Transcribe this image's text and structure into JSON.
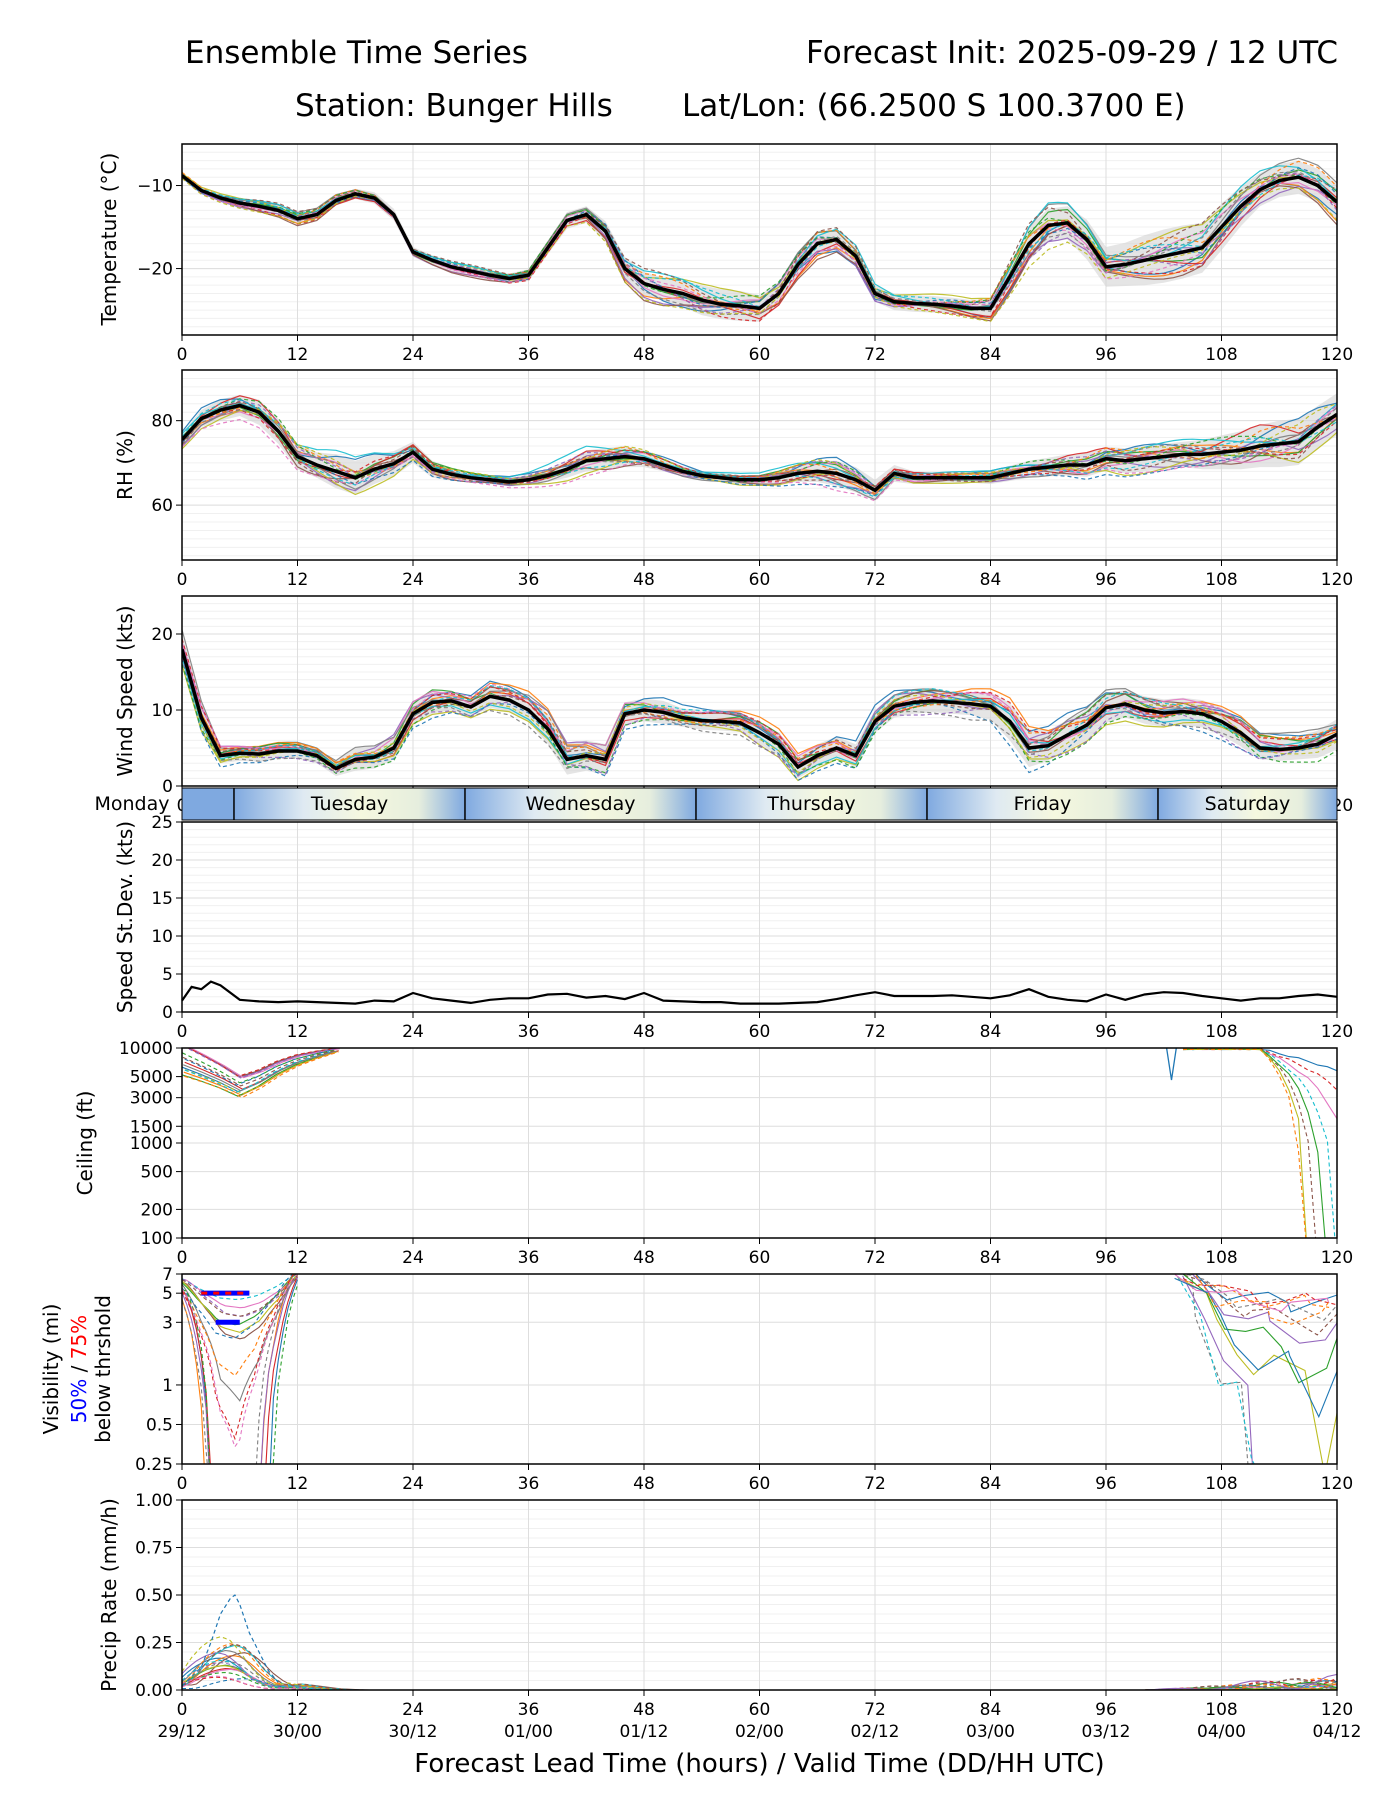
{
  "header": {
    "title_left": "Ensemble Time Series",
    "title_right": "Forecast Init: 2025-09-29 / 12 UTC",
    "station": "Station: Bunger Hills",
    "latlon": "Lat/Lon: (66.2500 S 100.3700 E)"
  },
  "x_axis": {
    "ticks": [
      0,
      12,
      24,
      36,
      48,
      60,
      72,
      84,
      96,
      108,
      120
    ],
    "valid_times": [
      "29/12",
      "30/00",
      "30/12",
      "01/00",
      "01/12",
      "02/00",
      "02/12",
      "03/00",
      "03/12",
      "04/00",
      "04/12"
    ],
    "label": "Forecast Lead Time (hours) / Valid Time (DD/HH UTC)"
  },
  "day_strip": {
    "days": [
      {
        "name": "Monday",
        "start": 0,
        "end": 5.4
      },
      {
        "name": "Tuesday",
        "start": 5.4,
        "end": 29.4
      },
      {
        "name": "Wednesday",
        "start": 29.4,
        "end": 53.4
      },
      {
        "name": "Thursday",
        "start": 53.4,
        "end": 77.4
      },
      {
        "name": "Friday",
        "start": 77.4,
        "end": 101.4
      },
      {
        "name": "Saturday",
        "start": 101.4,
        "end": 120
      }
    ]
  },
  "colors": {
    "mean": "#000000",
    "spread": "#d3d3d3",
    "vis50": "#0000ff",
    "vis75": "#ff0000",
    "members": [
      "#1f77b4",
      "#ff7f0e",
      "#2ca02c",
      "#d62728",
      "#9467bd",
      "#8c564b",
      "#e377c2",
      "#7f7f7f",
      "#bcbd22",
      "#17becf"
    ]
  },
  "chart_data": [
    {
      "type": "line",
      "id": "temperature",
      "ylabel": "Temperature (°C)",
      "ylim": [
        -28,
        -5
      ],
      "yticks": [
        -20,
        -10
      ],
      "ytick_labels": [
        "−20",
        "−10"
      ],
      "x": [
        0,
        2,
        4,
        6,
        8,
        10,
        12,
        14,
        16,
        18,
        20,
        22,
        24,
        26,
        28,
        30,
        32,
        34,
        36,
        38,
        40,
        42,
        44,
        46,
        48,
        50,
        52,
        54,
        56,
        58,
        60,
        62,
        64,
        66,
        68,
        70,
        72,
        74,
        76,
        78,
        80,
        82,
        84,
        86,
        88,
        90,
        92,
        94,
        96,
        98,
        100,
        102,
        104,
        106,
        108,
        110,
        112,
        114,
        116,
        118,
        120
      ],
      "series": [
        {
          "name": "ensemble mean",
          "values": [
            -8.8,
            -10.6,
            -11.5,
            -12.1,
            -12.5,
            -13,
            -14,
            -13.5,
            -11.8,
            -11,
            -11.5,
            -13.5,
            -18,
            -19,
            -19.8,
            -20.3,
            -20.8,
            -21.2,
            -20.8,
            -17.5,
            -14.2,
            -13.5,
            -15.5,
            -20,
            -21.8,
            -22.5,
            -23,
            -23.8,
            -24.3,
            -24.5,
            -24.8,
            -23,
            -19.5,
            -17,
            -16.5,
            -18.5,
            -23,
            -24,
            -24.2,
            -24.3,
            -24.5,
            -24.8,
            -24.8,
            -21,
            -17,
            -14.8,
            -14.5,
            -16.5,
            -19.8,
            -19.5,
            -19,
            -18.5,
            -18,
            -17.5,
            -15,
            -12.5,
            -10.5,
            -9.4,
            -9,
            -10,
            -12
          ]
        }
      ],
      "spread_width": [
        0.3,
        0.4,
        0.5,
        0.5,
        0.5,
        0.6,
        0.6,
        0.6,
        0.6,
        0.6,
        0.7,
        0.7,
        0.6,
        0.6,
        0.6,
        0.6,
        0.6,
        0.6,
        0.7,
        0.8,
        1,
        1,
        1.2,
        1.4,
        1.4,
        1.4,
        1.6,
        1.8,
        1.8,
        1.8,
        1.6,
        1.4,
        1.4,
        1.2,
        1.2,
        1.2,
        1,
        1,
        1,
        1,
        1,
        1,
        1.2,
        1.6,
        2,
        2,
        2,
        2.4,
        2.4,
        2.6,
        3,
        3.2,
        3.2,
        3,
        2.8,
        2.4,
        2,
        2,
        2,
        2,
        2.2
      ],
      "member_spread": [
        0.6,
        0.7,
        0.8,
        0.9,
        1,
        1,
        1,
        1,
        1,
        0.9,
        0.9,
        1,
        0.9,
        0.9,
        0.9,
        0.9,
        0.9,
        0.9,
        1,
        1.1,
        1.2,
        1.4,
        1.8,
        2.2,
        2.6,
        2.8,
        2.8,
        2.8,
        2.8,
        2.8,
        2.8,
        2.6,
        2.6,
        2.5,
        2.2,
        2,
        1.8,
        1.6,
        1.6,
        1.6,
        1.6,
        1.6,
        2,
        2.8,
        3.6,
        4,
        3.6,
        3.2,
        3.2,
        3.2,
        3.4,
        3.6,
        3.8,
        3.8,
        3.6,
        3.4,
        3.2,
        3,
        3,
        3.2,
        3.4
      ]
    },
    {
      "type": "line",
      "id": "rh",
      "ylabel": "RH (%)",
      "ylim": [
        47,
        92
      ],
      "yticks": [
        60,
        80
      ],
      "ytick_labels": [
        "60",
        "80"
      ],
      "x": [
        0,
        2,
        4,
        6,
        8,
        10,
        12,
        14,
        16,
        18,
        20,
        22,
        24,
        26,
        28,
        30,
        32,
        34,
        36,
        38,
        40,
        42,
        44,
        46,
        48,
        50,
        52,
        54,
        56,
        58,
        60,
        62,
        64,
        66,
        68,
        70,
        72,
        74,
        76,
        78,
        80,
        82,
        84,
        86,
        88,
        90,
        92,
        94,
        96,
        98,
        100,
        102,
        104,
        106,
        108,
        110,
        112,
        114,
        116,
        118,
        120
      ],
      "series": [
        {
          "name": "ensemble mean",
          "values": [
            75.5,
            80.5,
            82.5,
            83.6,
            82,
            77.5,
            71.5,
            69.5,
            68,
            66.5,
            68.5,
            69.8,
            72.5,
            68.5,
            67.3,
            66.5,
            66,
            65.5,
            66,
            67,
            68.5,
            70.5,
            71,
            71.5,
            71,
            69.5,
            68,
            67,
            66.5,
            66,
            66,
            66.5,
            67.5,
            68,
            67.5,
            66,
            63.5,
            67.5,
            66.5,
            66.5,
            66.5,
            66.5,
            66.5,
            67.5,
            68.5,
            69,
            69.5,
            69.5,
            71,
            70.5,
            71,
            71.5,
            72,
            72,
            72.5,
            73,
            74,
            74.5,
            75,
            78.5,
            81.5
          ]
        }
      ],
      "spread_width": [
        1.5,
        2,
        2.5,
        2.5,
        3,
        3,
        3,
        3,
        4,
        4,
        3.5,
        3,
        2.5,
        2,
        1.5,
        1.2,
        1,
        1,
        1.2,
        1.5,
        2,
        2.5,
        2.5,
        2.5,
        2,
        1.5,
        1.2,
        1,
        1,
        1,
        1,
        1.5,
        2,
        2.5,
        3,
        3,
        2.5,
        2,
        1.5,
        1.2,
        1.2,
        1.2,
        1.5,
        1.8,
        2,
        2.2,
        2.5,
        2.8,
        2.8,
        3,
        3,
        3,
        3,
        3.5,
        4,
        4.5,
        5,
        5.5,
        5.5,
        5,
        5
      ],
      "member_spread": [
        3,
        3.5,
        4,
        4,
        4.5,
        5,
        5,
        5,
        6,
        6,
        5.5,
        4.5,
        3.5,
        3,
        2.5,
        2,
        1.8,
        1.8,
        2.2,
        3,
        4,
        5,
        5,
        4.5,
        3.5,
        3,
        2.5,
        2,
        2,
        2,
        2,
        3,
        4,
        5,
        6,
        5,
        4,
        3,
        2.5,
        2,
        2,
        2,
        2.5,
        3,
        3.5,
        4,
        4.5,
        5,
        5,
        5,
        5,
        5,
        5,
        5.5,
        6,
        7,
        8,
        8,
        8,
        7,
        6
      ]
    },
    {
      "type": "line",
      "id": "wind",
      "ylabel": "Wind Speed (kts)",
      "ylim": [
        0,
        25
      ],
      "yticks": [
        0,
        10,
        20
      ],
      "ytick_labels": [
        "0",
        "10",
        "20"
      ],
      "x": [
        0,
        2,
        4,
        6,
        8,
        10,
        12,
        14,
        16,
        18,
        20,
        22,
        24,
        26,
        28,
        30,
        32,
        34,
        36,
        38,
        40,
        42,
        44,
        46,
        48,
        50,
        52,
        54,
        56,
        58,
        60,
        62,
        64,
        66,
        68,
        70,
        72,
        74,
        76,
        78,
        80,
        82,
        84,
        86,
        88,
        90,
        92,
        94,
        96,
        98,
        100,
        102,
        104,
        106,
        108,
        110,
        112,
        114,
        116,
        118,
        120
      ],
      "series": [
        {
          "name": "ensemble mean",
          "values": [
            18,
            9,
            4,
            4.3,
            4.2,
            4.6,
            4.6,
            4,
            2.3,
            3.5,
            3.8,
            5,
            9.5,
            11,
            11.2,
            10.4,
            11.8,
            11.3,
            10,
            7.5,
            3.5,
            4,
            3.5,
            9.5,
            10,
            9.7,
            9,
            8.6,
            8.5,
            8.3,
            7,
            5.5,
            2.5,
            4,
            5,
            4,
            8.5,
            10.5,
            11,
            11.2,
            11,
            10.8,
            10.5,
            8.5,
            5,
            5.3,
            6.7,
            8,
            10.3,
            10.8,
            10,
            9.6,
            9.8,
            9.5,
            8.5,
            7,
            5,
            4.8,
            5,
            5.5,
            6.8
          ]
        }
      ],
      "spread_width": [
        2,
        2,
        1,
        1,
        1,
        1,
        1,
        1,
        1,
        1.5,
        1.5,
        1.5,
        1.5,
        1.5,
        1.2,
        1.2,
        1.5,
        1.5,
        1.5,
        2,
        2,
        2,
        2,
        1.5,
        1.5,
        1.5,
        1.2,
        1.2,
        1.2,
        1.2,
        1.5,
        1.5,
        1.5,
        1.5,
        1.5,
        1.5,
        1.5,
        1.5,
        1.5,
        1.5,
        1.5,
        1.5,
        1.8,
        2.5,
        2.5,
        2,
        2,
        2,
        2,
        1.8,
        1.8,
        1.8,
        1.8,
        1.8,
        1.8,
        1.8,
        1.5,
        1.5,
        1.5,
        1.8,
        2
      ],
      "member_spread": [
        3,
        3,
        2,
        1.5,
        1.5,
        1.5,
        1.5,
        1.5,
        1.5,
        2,
        2,
        2.5,
        2.5,
        2.5,
        2,
        2,
        2.5,
        2.5,
        3,
        3.5,
        3,
        3,
        3,
        2.5,
        2.5,
        2.5,
        2,
        2,
        2,
        2,
        2.5,
        2.5,
        2.5,
        2.5,
        2.5,
        2.5,
        2.5,
        2.5,
        2.5,
        2.5,
        2.5,
        3,
        3,
        4,
        4,
        3.5,
        3.5,
        3,
        3,
        3,
        3,
        3,
        3,
        3,
        3,
        3,
        2.5,
        2.5,
        2.5,
        3,
        3
      ]
    },
    {
      "type": "line",
      "id": "wind_std",
      "ylabel": "Speed St.Dev. (kts)",
      "ylim": [
        0,
        25
      ],
      "yticks": [
        0,
        5,
        10,
        15,
        20,
        25
      ],
      "ytick_labels": [
        "0",
        "5",
        "10",
        "15",
        "20",
        "25"
      ],
      "x": [
        0,
        1,
        2,
        3,
        4,
        6,
        8,
        10,
        12,
        14,
        16,
        18,
        20,
        22,
        24,
        26,
        28,
        30,
        32,
        34,
        36,
        38,
        40,
        42,
        44,
        46,
        48,
        50,
        52,
        54,
        56,
        58,
        60,
        62,
        64,
        66,
        68,
        70,
        72,
        74,
        76,
        78,
        80,
        82,
        84,
        86,
        88,
        90,
        92,
        94,
        96,
        98,
        100,
        102,
        104,
        106,
        108,
        110,
        112,
        114,
        116,
        118,
        120
      ],
      "series": [
        {
          "name": "speed std dev",
          "values": [
            1.5,
            3.3,
            3,
            4,
            3.5,
            1.6,
            1.4,
            1.3,
            1.4,
            1.3,
            1.2,
            1.1,
            1.5,
            1.4,
            2.5,
            1.8,
            1.5,
            1.2,
            1.6,
            1.8,
            1.8,
            2.3,
            2.4,
            1.9,
            2.1,
            1.7,
            2.5,
            1.5,
            1.4,
            1.3,
            1.3,
            1.1,
            1.1,
            1.1,
            1.2,
            1.3,
            1.7,
            2.2,
            2.6,
            2.1,
            2.1,
            2.1,
            2.2,
            2.0,
            1.8,
            2.2,
            3,
            2.0,
            1.6,
            1.4,
            2.3,
            1.6,
            2.3,
            2.6,
            2.5,
            2.1,
            1.8,
            1.5,
            1.8,
            1.8,
            2.1,
            2.3,
            2.0
          ]
        }
      ]
    },
    {
      "type": "line",
      "id": "ceiling",
      "scale": "log",
      "ylabel": "Ceiling (ft)",
      "ylim": [
        100,
        10000
      ],
      "yticks": [
        100,
        200,
        500,
        1000,
        1500,
        3000,
        5000,
        10000
      ],
      "ytick_labels": [
        "100",
        "200",
        "500",
        "1000",
        "1500",
        "3000",
        "5000",
        "10000"
      ],
      "x": [
        0,
        2,
        4,
        6,
        8,
        10,
        12,
        14,
        16
      ],
      "series": [
        {
          "name": "member low ceilings (early)",
          "values": [
            8000,
            6500,
            5200,
            4000,
            4800,
            6200,
            7500,
            8500,
            9500
          ]
        }
      ],
      "late_dip": {
        "x": [
          102.3,
          102.8,
          103.3
        ],
        "values": [
          10000,
          4600,
          10000
        ]
      }
    },
    {
      "type": "line",
      "id": "visibility",
      "scale": "log",
      "ylabel": "Visibility (mi)",
      "ylabel_50": "50%",
      "ylabel_sep": " / ",
      "ylabel_75": "75%",
      "ylabel_3": "below thrshold",
      "ylim": [
        0.25,
        7
      ],
      "yticks": [
        0.25,
        0.5,
        1,
        3,
        5,
        7
      ],
      "ytick_labels": [
        "0.25",
        "0.5",
        "1",
        "3",
        "5",
        "7"
      ],
      "x": [
        0,
        2,
        4,
        6,
        8,
        10,
        12
      ],
      "series": [
        {
          "name": "member dip (early)",
          "values": [
            6,
            3.5,
            1.8,
            1.5,
            2.2,
            4,
            7
          ]
        }
      ],
      "late_x": [
        104,
        106,
        108,
        110,
        112,
        114,
        116,
        118,
        120
      ],
      "late_values": [
        7,
        5,
        3.5,
        3,
        2.5,
        2.2,
        2,
        1.8,
        2.5
      ],
      "threshold_bars": [
        {
          "level": "50%",
          "value": 5,
          "x_start": 2,
          "x_end": 7
        },
        {
          "level": "75%",
          "value": 5,
          "x_start": 2,
          "x_end": 7
        },
        {
          "level": "50%",
          "value": 3,
          "x_start": 3.5,
          "x_end": 6
        }
      ]
    },
    {
      "type": "line",
      "id": "precip",
      "ylabel": "Precip Rate (mm/h)",
      "ylim": [
        0,
        1
      ],
      "yticks": [
        0,
        0.25,
        0.5,
        0.75,
        1
      ],
      "ytick_labels": [
        "0.00",
        "0.25",
        "0.50",
        "0.75",
        "1.00"
      ],
      "x": [
        0,
        1,
        2,
        3,
        4,
        5,
        6,
        7,
        8,
        9,
        10,
        11,
        12,
        13,
        14,
        15,
        16,
        17,
        18,
        100,
        102,
        104,
        106,
        108,
        110,
        112,
        114,
        116,
        118,
        120
      ],
      "series": [
        {
          "name": "member mean",
          "values": [
            0.02,
            0.05,
            0.09,
            0.12,
            0.14,
            0.15,
            0.14,
            0.11,
            0.07,
            0.04,
            0.02,
            0.015,
            0.02,
            0.015,
            0.01,
            0.005,
            0.003,
            0.001,
            0,
            0,
            0.003,
            0.006,
            0.01,
            0.015,
            0.02,
            0.025,
            0.03,
            0.035,
            0.04,
            0.04
          ]
        }
      ],
      "max_member": {
        "x": [
          0,
          2,
          3,
          4,
          5,
          5.5,
          6,
          7,
          8,
          9,
          10
        ],
        "values": [
          0.02,
          0.12,
          0.25,
          0.4,
          0.48,
          0.5,
          0.45,
          0.3,
          0.2,
          0.1,
          0.04
        ]
      }
    }
  ]
}
